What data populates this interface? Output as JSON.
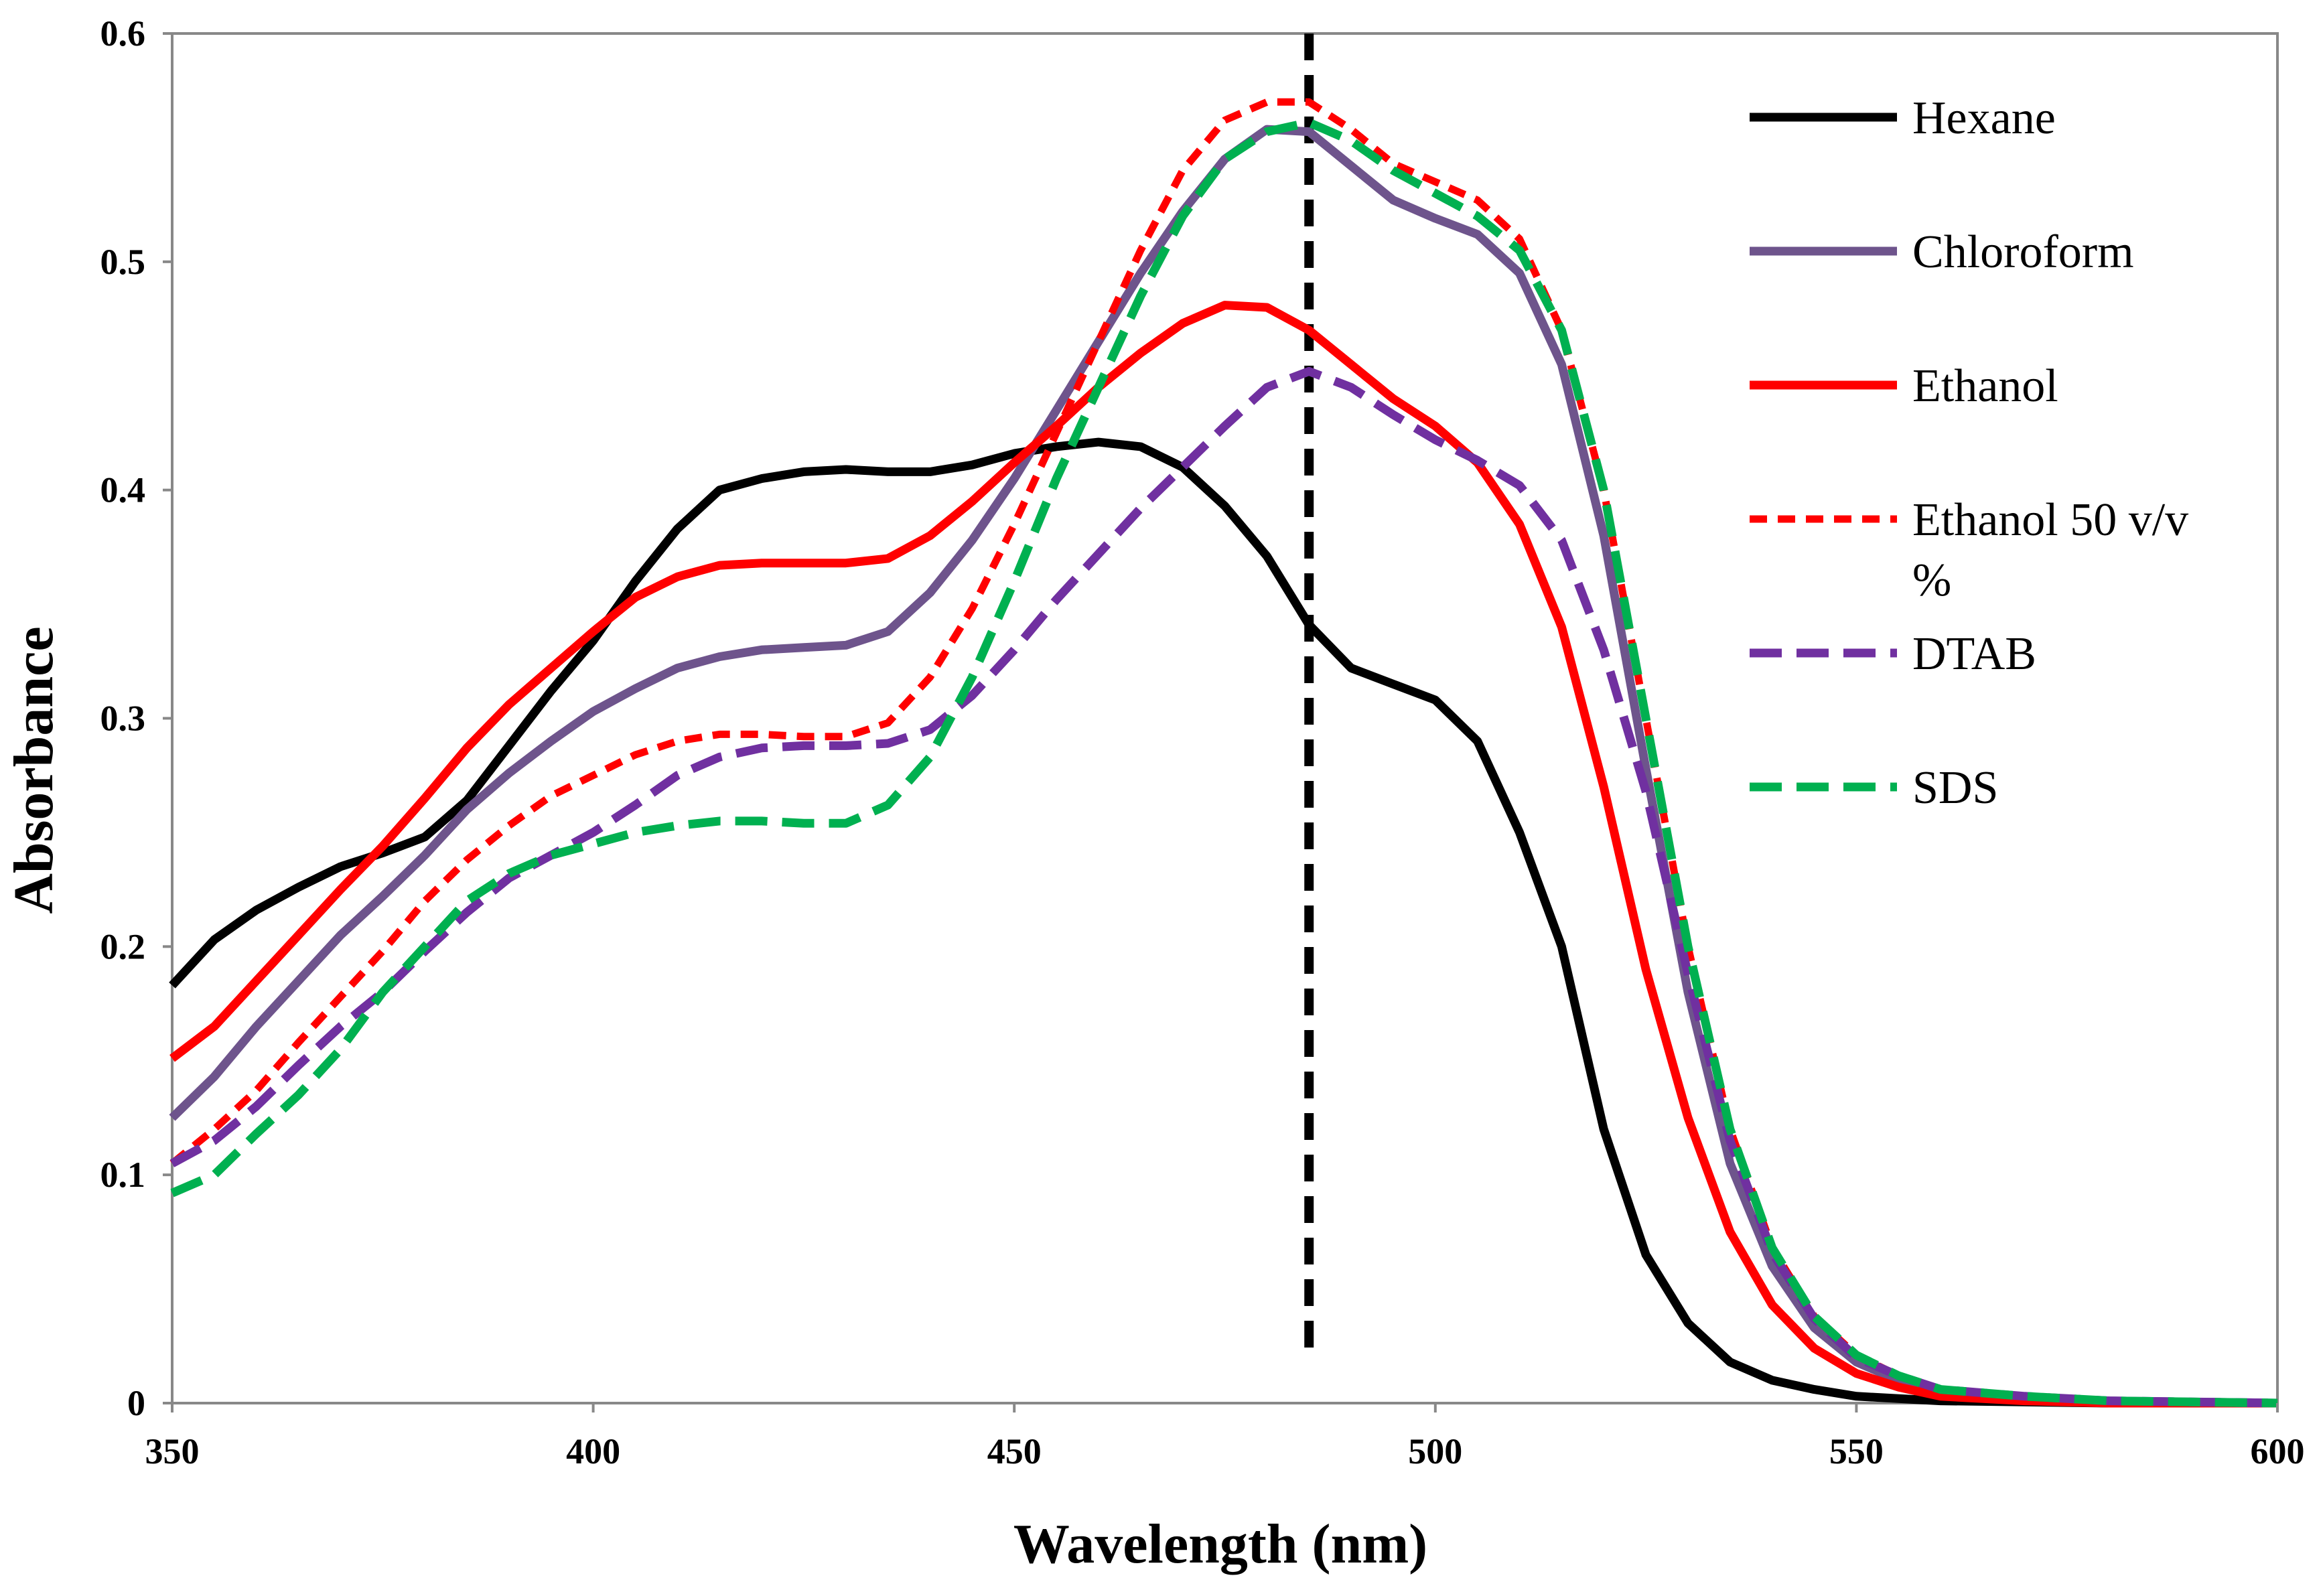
{
  "chart_data": {
    "type": "line",
    "title": "",
    "xlabel": "Wavelength (nm)",
    "ylabel": "Absorbance",
    "xlim": [
      350,
      600
    ],
    "ylim": [
      0,
      0.6
    ],
    "x_ticks": [
      "350",
      "400",
      "450",
      "500",
      "550",
      "600"
    ],
    "y_ticks": [
      "0",
      "0.1",
      "0.2",
      "0.3",
      "0.4",
      "0.5",
      "0.6"
    ],
    "grid": false,
    "legend_position": "top-right",
    "reference_line": {
      "x": 485,
      "style": "dashed",
      "color": "#000000"
    },
    "series": [
      {
        "name": "Hexane",
        "color": "#000000",
        "style": "solid",
        "points": [
          [
            350,
            0.183
          ],
          [
            355,
            0.203
          ],
          [
            360,
            0.216
          ],
          [
            365,
            0.226
          ],
          [
            370,
            0.235
          ],
          [
            375,
            0.241
          ],
          [
            380,
            0.248
          ],
          [
            385,
            0.264
          ],
          [
            390,
            0.288
          ],
          [
            395,
            0.312
          ],
          [
            400,
            0.334
          ],
          [
            405,
            0.36
          ],
          [
            410,
            0.383
          ],
          [
            415,
            0.4
          ],
          [
            420,
            0.405
          ],
          [
            425,
            0.408
          ],
          [
            430,
            0.409
          ],
          [
            435,
            0.408
          ],
          [
            440,
            0.408
          ],
          [
            445,
            0.411
          ],
          [
            450,
            0.416
          ],
          [
            455,
            0.419
          ],
          [
            460,
            0.421
          ],
          [
            465,
            0.419
          ],
          [
            470,
            0.41
          ],
          [
            475,
            0.393
          ],
          [
            480,
            0.371
          ],
          [
            485,
            0.341
          ],
          [
            490,
            0.322
          ],
          [
            495,
            0.315
          ],
          [
            500,
            0.308
          ],
          [
            505,
            0.29
          ],
          [
            510,
            0.25
          ],
          [
            515,
            0.2
          ],
          [
            520,
            0.12
          ],
          [
            525,
            0.065
          ],
          [
            530,
            0.035
          ],
          [
            535,
            0.018
          ],
          [
            540,
            0.01
          ],
          [
            545,
            0.006
          ],
          [
            550,
            0.003
          ],
          [
            555,
            0.002
          ],
          [
            560,
            0.001
          ],
          [
            570,
            0.0005
          ],
          [
            580,
            0
          ],
          [
            600,
            0
          ]
        ]
      },
      {
        "name": "Chloroform",
        "color": "#6E548C",
        "style": "solid",
        "points": [
          [
            350,
            0.125
          ],
          [
            355,
            0.143
          ],
          [
            360,
            0.165
          ],
          [
            365,
            0.185
          ],
          [
            370,
            0.205
          ],
          [
            375,
            0.222
          ],
          [
            380,
            0.24
          ],
          [
            385,
            0.26
          ],
          [
            390,
            0.276
          ],
          [
            395,
            0.29
          ],
          [
            400,
            0.303
          ],
          [
            405,
            0.313
          ],
          [
            410,
            0.322
          ],
          [
            415,
            0.327
          ],
          [
            420,
            0.33
          ],
          [
            425,
            0.331
          ],
          [
            430,
            0.332
          ],
          [
            435,
            0.338
          ],
          [
            440,
            0.355
          ],
          [
            445,
            0.378
          ],
          [
            450,
            0.405
          ],
          [
            455,
            0.435
          ],
          [
            460,
            0.465
          ],
          [
            465,
            0.495
          ],
          [
            470,
            0.522
          ],
          [
            475,
            0.545
          ],
          [
            480,
            0.558
          ],
          [
            485,
            0.557
          ],
          [
            490,
            0.542
          ],
          [
            495,
            0.527
          ],
          [
            500,
            0.519
          ],
          [
            505,
            0.512
          ],
          [
            510,
            0.495
          ],
          [
            515,
            0.455
          ],
          [
            520,
            0.38
          ],
          [
            525,
            0.278
          ],
          [
            530,
            0.18
          ],
          [
            535,
            0.105
          ],
          [
            540,
            0.06
          ],
          [
            545,
            0.033
          ],
          [
            550,
            0.018
          ],
          [
            555,
            0.01
          ],
          [
            560,
            0.005
          ],
          [
            570,
            0.002
          ],
          [
            580,
            0.001
          ],
          [
            600,
            0
          ]
        ]
      },
      {
        "name": "Ethanol",
        "color": "#FF0000",
        "style": "solid",
        "points": [
          [
            350,
            0.151
          ],
          [
            355,
            0.165
          ],
          [
            360,
            0.185
          ],
          [
            365,
            0.205
          ],
          [
            370,
            0.225
          ],
          [
            375,
            0.244
          ],
          [
            380,
            0.265
          ],
          [
            385,
            0.287
          ],
          [
            390,
            0.306
          ],
          [
            395,
            0.322
          ],
          [
            400,
            0.338
          ],
          [
            405,
            0.353
          ],
          [
            410,
            0.362
          ],
          [
            415,
            0.367
          ],
          [
            420,
            0.368
          ],
          [
            425,
            0.368
          ],
          [
            430,
            0.368
          ],
          [
            435,
            0.37
          ],
          [
            440,
            0.38
          ],
          [
            445,
            0.395
          ],
          [
            450,
            0.412
          ],
          [
            455,
            0.428
          ],
          [
            460,
            0.445
          ],
          [
            465,
            0.46
          ],
          [
            470,
            0.473
          ],
          [
            475,
            0.481
          ],
          [
            480,
            0.48
          ],
          [
            485,
            0.47
          ],
          [
            490,
            0.455
          ],
          [
            495,
            0.44
          ],
          [
            500,
            0.428
          ],
          [
            505,
            0.412
          ],
          [
            510,
            0.385
          ],
          [
            515,
            0.34
          ],
          [
            520,
            0.27
          ],
          [
            525,
            0.19
          ],
          [
            530,
            0.125
          ],
          [
            535,
            0.075
          ],
          [
            540,
            0.043
          ],
          [
            545,
            0.024
          ],
          [
            550,
            0.013
          ],
          [
            555,
            0.007
          ],
          [
            560,
            0.003
          ],
          [
            570,
            0.001
          ],
          [
            580,
            0
          ],
          [
            600,
            0
          ]
        ]
      },
      {
        "name": "Ethanol 50 v/v %",
        "color": "#FF0000",
        "style": "dotted",
        "points": [
          [
            350,
            0.105
          ],
          [
            355,
            0.12
          ],
          [
            360,
            0.137
          ],
          [
            365,
            0.158
          ],
          [
            370,
            0.178
          ],
          [
            375,
            0.198
          ],
          [
            380,
            0.22
          ],
          [
            385,
            0.238
          ],
          [
            390,
            0.253
          ],
          [
            395,
            0.266
          ],
          [
            400,
            0.275
          ],
          [
            405,
            0.284
          ],
          [
            410,
            0.29
          ],
          [
            415,
            0.293
          ],
          [
            420,
            0.293
          ],
          [
            425,
            0.292
          ],
          [
            430,
            0.292
          ],
          [
            435,
            0.298
          ],
          [
            440,
            0.318
          ],
          [
            445,
            0.348
          ],
          [
            450,
            0.385
          ],
          [
            455,
            0.425
          ],
          [
            460,
            0.465
          ],
          [
            465,
            0.505
          ],
          [
            470,
            0.54
          ],
          [
            475,
            0.562
          ],
          [
            480,
            0.57
          ],
          [
            485,
            0.57
          ],
          [
            490,
            0.558
          ],
          [
            495,
            0.543
          ],
          [
            500,
            0.535
          ],
          [
            505,
            0.527
          ],
          [
            510,
            0.51
          ],
          [
            515,
            0.47
          ],
          [
            520,
            0.4
          ],
          [
            525,
            0.3
          ],
          [
            530,
            0.2
          ],
          [
            535,
            0.12
          ],
          [
            540,
            0.068
          ],
          [
            545,
            0.038
          ],
          [
            550,
            0.021
          ],
          [
            555,
            0.012
          ],
          [
            560,
            0.006
          ],
          [
            570,
            0.003
          ],
          [
            580,
            0.001
          ],
          [
            600,
            0
          ]
        ]
      },
      {
        "name": "DTAB",
        "color": "#7030A0",
        "style": "dashed",
        "points": [
          [
            350,
            0.105
          ],
          [
            355,
            0.115
          ],
          [
            360,
            0.13
          ],
          [
            365,
            0.148
          ],
          [
            370,
            0.165
          ],
          [
            375,
            0.18
          ],
          [
            380,
            0.198
          ],
          [
            385,
            0.215
          ],
          [
            390,
            0.23
          ],
          [
            395,
            0.24
          ],
          [
            400,
            0.25
          ],
          [
            405,
            0.262
          ],
          [
            410,
            0.275
          ],
          [
            415,
            0.283
          ],
          [
            420,
            0.287
          ],
          [
            425,
            0.288
          ],
          [
            430,
            0.288
          ],
          [
            435,
            0.289
          ],
          [
            440,
            0.295
          ],
          [
            445,
            0.31
          ],
          [
            450,
            0.33
          ],
          [
            455,
            0.352
          ],
          [
            460,
            0.372
          ],
          [
            465,
            0.392
          ],
          [
            470,
            0.41
          ],
          [
            475,
            0.428
          ],
          [
            480,
            0.445
          ],
          [
            485,
            0.452
          ],
          [
            490,
            0.445
          ],
          [
            495,
            0.433
          ],
          [
            500,
            0.422
          ],
          [
            505,
            0.413
          ],
          [
            510,
            0.402
          ],
          [
            515,
            0.378
          ],
          [
            520,
            0.33
          ],
          [
            525,
            0.268
          ],
          [
            530,
            0.188
          ],
          [
            535,
            0.115
          ],
          [
            540,
            0.066
          ],
          [
            545,
            0.037
          ],
          [
            550,
            0.02
          ],
          [
            555,
            0.012
          ],
          [
            560,
            0.006
          ],
          [
            570,
            0.003
          ],
          [
            580,
            0.001
          ],
          [
            600,
            0
          ]
        ]
      },
      {
        "name": "SDS",
        "color": "#00B050",
        "style": "dashed",
        "points": [
          [
            350,
            0.092
          ],
          [
            355,
            0.1
          ],
          [
            360,
            0.118
          ],
          [
            365,
            0.135
          ],
          [
            370,
            0.155
          ],
          [
            375,
            0.18
          ],
          [
            380,
            0.2
          ],
          [
            385,
            0.22
          ],
          [
            390,
            0.232
          ],
          [
            395,
            0.24
          ],
          [
            400,
            0.245
          ],
          [
            405,
            0.25
          ],
          [
            410,
            0.253
          ],
          [
            415,
            0.255
          ],
          [
            420,
            0.255
          ],
          [
            425,
            0.254
          ],
          [
            430,
            0.254
          ],
          [
            435,
            0.262
          ],
          [
            440,
            0.283
          ],
          [
            445,
            0.318
          ],
          [
            450,
            0.36
          ],
          [
            455,
            0.405
          ],
          [
            460,
            0.445
          ],
          [
            465,
            0.485
          ],
          [
            470,
            0.52
          ],
          [
            475,
            0.545
          ],
          [
            480,
            0.557
          ],
          [
            485,
            0.561
          ],
          [
            490,
            0.553
          ],
          [
            495,
            0.54
          ],
          [
            500,
            0.53
          ],
          [
            505,
            0.52
          ],
          [
            510,
            0.505
          ],
          [
            515,
            0.47
          ],
          [
            520,
            0.4
          ],
          [
            525,
            0.3
          ],
          [
            530,
            0.2
          ],
          [
            535,
            0.12
          ],
          [
            540,
            0.068
          ],
          [
            545,
            0.038
          ],
          [
            550,
            0.021
          ],
          [
            555,
            0.012
          ],
          [
            560,
            0.006
          ],
          [
            570,
            0.003
          ],
          [
            580,
            0.001
          ],
          [
            600,
            0
          ]
        ]
      }
    ]
  }
}
